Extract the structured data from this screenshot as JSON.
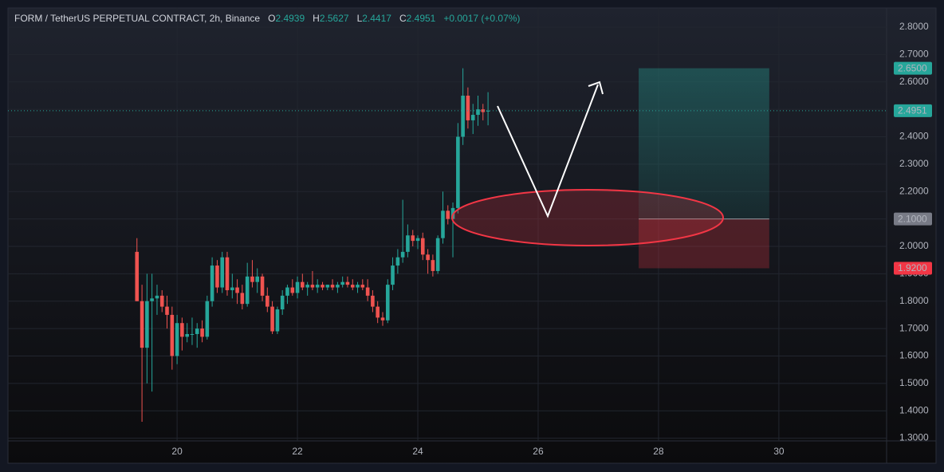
{
  "chart_data": {
    "type": "candlestick",
    "title": "FORM / TetherUS PERPETUAL CONTRACT, 2h, Binance",
    "ohlc_labels": [
      "O",
      "H",
      "L",
      "C"
    ],
    "change": "+0.0017 (+0.07%)",
    "up_color": "#26a69a",
    "down_color": "#ef5350",
    "x": [
      19.333,
      19.417,
      19.5,
      19.583,
      19.667,
      19.75,
      19.833,
      19.917,
      20,
      20.083,
      20.167,
      20.25,
      20.333,
      20.417,
      20.5,
      20.583,
      20.667,
      20.75,
      20.833,
      20.917,
      21,
      21.083,
      21.167,
      21.25,
      21.333,
      21.417,
      21.5,
      21.583,
      21.667,
      21.75,
      21.833,
      21.917,
      22,
      22.083,
      22.167,
      22.25,
      22.333,
      22.417,
      22.5,
      22.583,
      22.667,
      22.75,
      22.833,
      22.917,
      23,
      23.083,
      23.167,
      23.25,
      23.333,
      23.417,
      23.5,
      23.583,
      23.667,
      23.75,
      23.833,
      23.917,
      24,
      24.083,
      24.167,
      24.25,
      24.333,
      24.417,
      24.5,
      24.583,
      24.667,
      24.75,
      24.833,
      24.917,
      25,
      25.083,
      25.167
    ],
    "open": [
      1.98,
      1.8,
      1.63,
      1.8,
      1.81,
      1.82,
      1.78,
      1.75,
      1.6,
      1.72,
      1.67,
      1.68,
      1.68,
      1.7,
      1.67,
      1.8,
      1.93,
      1.85,
      1.96,
      1.84,
      1.85,
      1.83,
      1.79,
      1.89,
      1.87,
      1.89,
      1.82,
      1.78,
      1.69,
      1.77,
      1.82,
      1.85,
      1.83,
      1.87,
      1.85,
      1.86,
      1.85,
      1.86,
      1.85,
      1.86,
      1.85,
      1.86,
      1.87,
      1.86,
      1.85,
      1.86,
      1.85,
      1.82,
      1.78,
      1.74,
      1.73,
      1.86,
      1.93,
      1.96,
      1.98,
      2.04,
      2.02,
      2.03,
      1.97,
      1.95,
      1.91,
      2.03,
      2.13,
      2.1,
      2.14,
      2.4,
      2.55,
      2.46,
      2.48,
      2.5,
      2.4939
    ],
    "high": [
      2.03,
      1.86,
      1.9,
      1.9,
      1.86,
      1.84,
      1.82,
      1.78,
      1.75,
      1.74,
      1.72,
      1.74,
      1.72,
      1.73,
      1.82,
      1.96,
      1.95,
      1.98,
      1.98,
      1.9,
      1.88,
      1.86,
      1.94,
      1.95,
      1.92,
      1.9,
      1.85,
      1.8,
      1.78,
      1.84,
      1.86,
      1.88,
      1.89,
      1.9,
      1.87,
      1.91,
      1.88,
      1.87,
      1.86,
      1.88,
      1.87,
      1.89,
      1.89,
      1.88,
      1.87,
      1.88,
      1.88,
      1.84,
      1.8,
      1.76,
      1.88,
      1.96,
      1.99,
      2.17,
      2.08,
      2.06,
      2.04,
      2.05,
      1.99,
      1.97,
      2.04,
      2.2,
      2.15,
      2.16,
      2.45,
      2.65,
      2.58,
      2.52,
      2.55,
      2.52,
      2.5627
    ],
    "low": [
      1.8,
      1.36,
      1.5,
      1.47,
      1.75,
      1.76,
      1.7,
      1.55,
      1.57,
      1.62,
      1.65,
      1.64,
      1.63,
      1.65,
      1.66,
      1.78,
      1.83,
      1.83,
      1.82,
      1.81,
      1.79,
      1.77,
      1.78,
      1.85,
      1.83,
      1.8,
      1.76,
      1.68,
      1.68,
      1.75,
      1.79,
      1.82,
      1.81,
      1.84,
      1.82,
      1.84,
      1.83,
      1.84,
      1.84,
      1.84,
      1.83,
      1.85,
      1.85,
      1.84,
      1.83,
      1.84,
      1.8,
      1.76,
      1.72,
      1.71,
      1.72,
      1.84,
      1.9,
      1.94,
      1.96,
      2.0,
      1.99,
      1.95,
      1.9,
      1.89,
      1.9,
      2.01,
      2.08,
      1.96,
      2.12,
      2.37,
      2.43,
      2.41,
      2.44,
      2.46,
      2.4417
    ],
    "close": [
      1.8,
      1.63,
      1.8,
      1.81,
      1.82,
      1.78,
      1.75,
      1.6,
      1.72,
      1.67,
      1.68,
      1.68,
      1.7,
      1.67,
      1.8,
      1.93,
      1.85,
      1.96,
      1.84,
      1.85,
      1.83,
      1.79,
      1.89,
      1.87,
      1.89,
      1.82,
      1.78,
      1.69,
      1.77,
      1.82,
      1.85,
      1.83,
      1.87,
      1.85,
      1.86,
      1.85,
      1.86,
      1.85,
      1.86,
      1.85,
      1.86,
      1.87,
      1.86,
      1.85,
      1.86,
      1.85,
      1.82,
      1.78,
      1.74,
      1.73,
      1.86,
      1.93,
      1.96,
      1.98,
      2.04,
      2.02,
      2.03,
      1.97,
      1.95,
      1.91,
      2.03,
      2.13,
      2.1,
      2.14,
      2.4,
      2.55,
      2.46,
      2.48,
      2.5,
      2.49,
      2.4951
    ],
    "xlim": [
      17.19,
      31.79
    ],
    "xticks": [
      20,
      22,
      24,
      26,
      28,
      30
    ],
    "ylim": [
      1.29,
      2.87
    ],
    "yticks": [
      {
        "value": 1.3,
        "label": "1.3000"
      },
      {
        "value": 1.4,
        "label": "1.4000"
      },
      {
        "value": 1.5,
        "label": "1.5000"
      },
      {
        "value": 1.6,
        "label": "1.6000"
      },
      {
        "value": 1.7,
        "label": "1.7000"
      },
      {
        "value": 1.8,
        "label": "1.8000"
      },
      {
        "value": 1.9,
        "label": "1.9000"
      },
      {
        "value": 2.0,
        "label": "2.0000"
      },
      {
        "value": 2.1,
        "label": "2.1000"
      },
      {
        "value": 2.2,
        "label": "2.2000"
      },
      {
        "value": 2.3,
        "label": "2.3000"
      },
      {
        "value": 2.4,
        "label": "2.4000"
      },
      {
        "value": 2.5,
        "label": "2.5000"
      },
      {
        "value": 2.6,
        "label": "2.6000"
      },
      {
        "value": 2.7,
        "label": "2.7000"
      },
      {
        "value": 2.8,
        "label": "2.8000"
      }
    ],
    "grid": true,
    "position": {
      "x_range": [
        27.67,
        29.84
      ],
      "target": {
        "value": 2.65,
        "label": "2.6500"
      },
      "entry": {
        "value": 2.1,
        "label": "2.1000"
      },
      "stop": {
        "value": 1.92,
        "label": "1.9200"
      }
    }
  }
}
